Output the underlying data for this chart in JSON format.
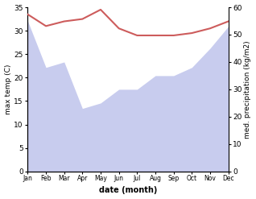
{
  "months": [
    "Jan",
    "Feb",
    "Mar",
    "Apr",
    "May",
    "Jun",
    "Jul",
    "Aug",
    "Sep",
    "Oct",
    "Nov",
    "Dec"
  ],
  "max_temp": [
    33.5,
    31.0,
    32.0,
    32.5,
    34.5,
    30.5,
    29.0,
    29.0,
    29.0,
    29.5,
    30.5,
    32.0
  ],
  "precipitation": [
    55,
    38,
    40,
    23,
    25,
    30,
    30,
    35,
    35,
    38,
    45,
    53
  ],
  "temp_color": "#cd5c5c",
  "precip_fill_color": "#c8ccee",
  "ylabel_left": "max temp (C)",
  "ylabel_right": "med. precipitation (kg/m2)",
  "xlabel": "date (month)",
  "ylim_left": [
    0,
    35
  ],
  "ylim_right": [
    0,
    60
  ],
  "yticks_left": [
    0,
    5,
    10,
    15,
    20,
    25,
    30,
    35
  ],
  "yticks_right": [
    0,
    10,
    20,
    30,
    40,
    50,
    60
  ],
  "background_color": "#ffffff"
}
